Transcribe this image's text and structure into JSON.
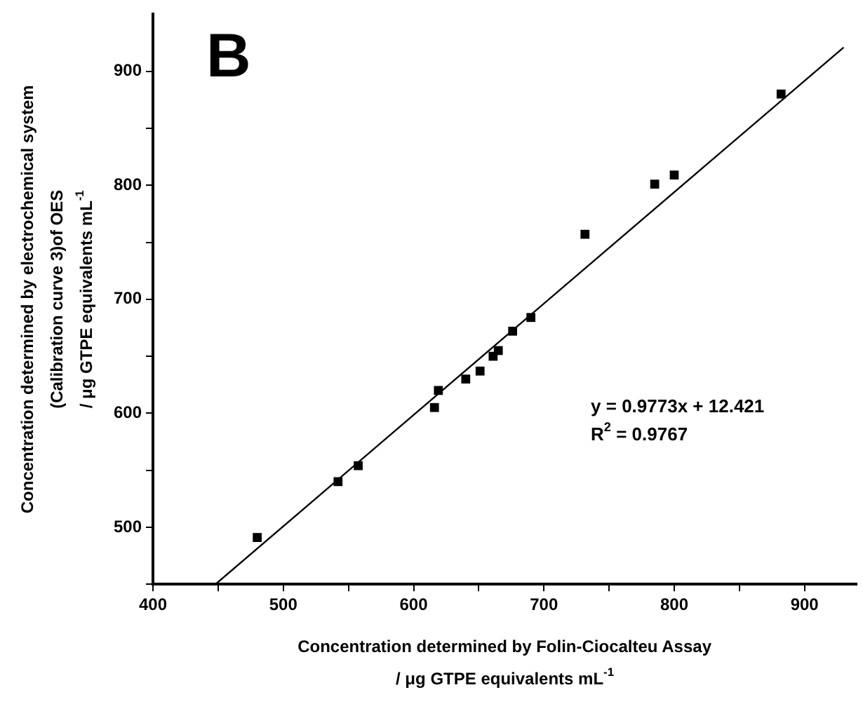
{
  "chart_data": {
    "type": "scatter",
    "xlabel": "Concentration determined by Folin-Ciocalteu Assay\n/ μg GTPE equivalents mL$^{-1}$",
    "ylabel": "Concentration determined by electrochemical system\n(Calibration curve 3)of OES\n/ μg GTPE equivalents mL$^{-1}$",
    "x": [
      480,
      542,
      557.5,
      616,
      619,
      640,
      651,
      661,
      665,
      676,
      690,
      731.5,
      785,
      800,
      882
    ],
    "series": [
      {
        "color": "#000000",
        "marker": "square",
        "values": [
          491,
          540,
          554,
          605,
          620,
          630,
          637,
          650,
          655,
          672,
          684,
          757,
          801,
          809,
          880
        ]
      },
      {
        "type": "line",
        "color": "#000000",
        "marker": "none",
        "x": [
          448,
          930
        ],
        "values": [
          450,
          921
        ]
      }
    ],
    "xlim": [
      400,
      940
    ],
    "ylim": [
      450,
      950
    ],
    "xticks": [
      400,
      {
        "value": 450,
        "label": null
      },
      500,
      {
        "value": 550,
        "label": null
      },
      600,
      {
        "value": 650,
        "label": null
      },
      700,
      {
        "value": 750,
        "label": null
      },
      800,
      {
        "value": 850,
        "label": null
      },
      900
    ],
    "yticks": [
      {
        "value": 450,
        "label": null
      },
      500,
      {
        "value": 550,
        "label": null
      },
      600,
      {
        "value": 650,
        "label": null
      },
      700,
      {
        "value": 750,
        "label": null
      },
      800,
      {
        "value": 850,
        "label": null
      },
      900
    ],
    "grid": false,
    "legend": false,
    "annotations": [
      "B",
      "y = 0.9773x + 12.421",
      "R$^{2}$ = 0.9767"
    ]
  }
}
